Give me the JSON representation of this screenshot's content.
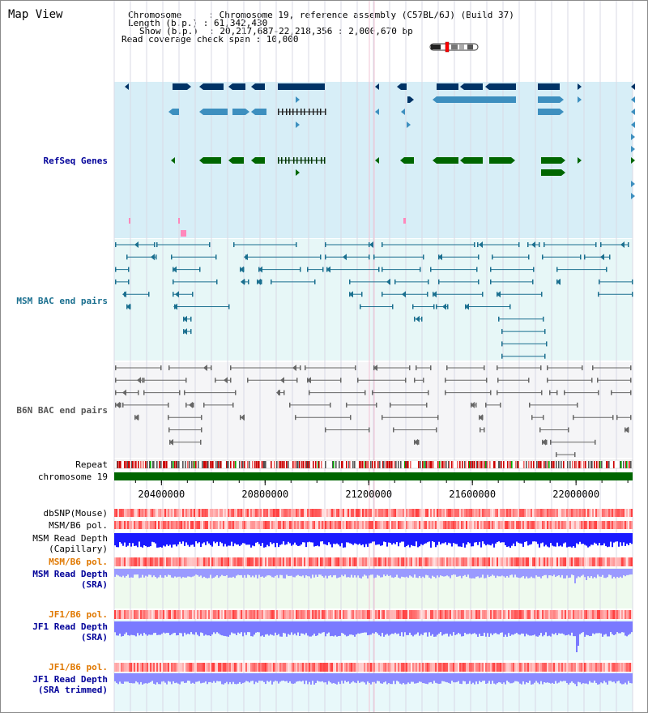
{
  "view_title": "Map View",
  "info": {
    "line1": "Chromosome     : Chromosome 19, reference assembly (C57BL/6J) (Build 37)",
    "line2": "Length (b.p.) : 61,342,430",
    "line3": "Show (b.p.)  : 20,217,687-22,218,356 : 2,000,670 bp",
    "line4": "Read coverage check span : 10,000"
  },
  "tracks": {
    "refseq": "RefSeq Genes",
    "msm_bac": "MSM BAC end pairs",
    "b6n_bac": "B6N BAC end pairs",
    "repeat": "Repeat",
    "chromosome": "chromosome 19",
    "dbsnp": "dbSNP(Mouse)",
    "msm_b6_pol_1": "MSM/B6 pol.",
    "msm_read_depth_cap_1": "MSM Read Depth",
    "msm_read_depth_cap_2": "(Capillary)",
    "msm_b6_pol_2": "MSM/B6 pol.",
    "msm_read_depth_sra_1": "MSM Read Depth",
    "msm_read_depth_sra_2": "(SRA)",
    "jf1_b6_pol_1": "JF1/B6 pol.",
    "jf1_read_depth_sra_1": "JF1 Read Depth",
    "jf1_read_depth_sra_2": "(SRA)",
    "jf1_b6_pol_2": "JF1/B6 pol.",
    "jf1_read_depth_trim_1": "JF1 Read Depth",
    "jf1_read_depth_trim_2": "(SRA trimmed)"
  },
  "axis": {
    "start": 20217687,
    "end": 22218356,
    "ticks": [
      {
        "value": 20400000,
        "label": "20400000"
      },
      {
        "value": 20800000,
        "label": "20800000"
      },
      {
        "value": 21200000,
        "label": "21200000"
      },
      {
        "value": 21600000,
        "label": "21600000"
      },
      {
        "value": 22000000,
        "label": "22000000"
      }
    ]
  },
  "colors": {
    "refseq_bg": "#d7eef7",
    "msm_bg": "#e7f7f7",
    "b6n_bg": "#f5f5f7",
    "gene_dark": "#003366",
    "gene_mid": "#3d8fbf",
    "gene_green": "#006600",
    "bac_teal": "#1a6f8f",
    "bac_gray": "#666666",
    "chrom_green": "#006600",
    "depth_blue": "#1a1aff",
    "depth_light": "#7a7aff",
    "label_blue": "#000099",
    "label_orange": "#e07800"
  }
}
